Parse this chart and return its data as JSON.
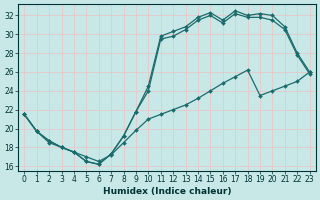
{
  "xlabel": "Humidex (Indice chaleur)",
  "bg_color": "#c8e8e8",
  "line_color": "#1a6b6b",
  "grid_color": "#e8c8c8",
  "xlim": [
    -0.5,
    23.5
  ],
  "ylim": [
    15.5,
    33.2
  ],
  "xticks": [
    0,
    1,
    2,
    3,
    4,
    5,
    6,
    7,
    8,
    9,
    10,
    11,
    12,
    13,
    14,
    15,
    16,
    17,
    18,
    19,
    20,
    21,
    22,
    23
  ],
  "yticks": [
    16,
    18,
    20,
    22,
    24,
    26,
    28,
    30,
    32
  ],
  "curve1_x": [
    0,
    1,
    2,
    3,
    4,
    5,
    6,
    7,
    8,
    9,
    10,
    11,
    12,
    13,
    14,
    15,
    16,
    17,
    18,
    19,
    20,
    21,
    22,
    23
  ],
  "curve1_y": [
    21.5,
    19.7,
    18.7,
    18.0,
    17.5,
    16.5,
    16.2,
    17.3,
    19.2,
    21.8,
    24.5,
    29.8,
    30.3,
    30.8,
    31.8,
    32.3,
    31.5,
    32.5,
    32.0,
    32.2,
    32.0,
    30.8,
    28.0,
    26.0
  ],
  "curve2_x": [
    0,
    1,
    2,
    3,
    4,
    5,
    6,
    7,
    8,
    9,
    10,
    11,
    12,
    13,
    14,
    15,
    16,
    17,
    18,
    19,
    20,
    21,
    22,
    23
  ],
  "curve2_y": [
    21.5,
    19.7,
    18.7,
    18.0,
    17.5,
    16.5,
    16.2,
    17.3,
    19.2,
    21.8,
    24.0,
    29.5,
    29.8,
    30.5,
    31.5,
    32.0,
    31.2,
    32.2,
    31.8,
    31.8,
    31.5,
    30.5,
    27.8,
    25.8
  ],
  "curve3_x": [
    0,
    1,
    2,
    3,
    4,
    5,
    6,
    7,
    8,
    9,
    10,
    11,
    12,
    13,
    14,
    15,
    16,
    17,
    18,
    19,
    20,
    21,
    22,
    23
  ],
  "curve3_y": [
    21.5,
    19.7,
    18.5,
    18.0,
    17.5,
    17.0,
    16.5,
    17.2,
    18.5,
    19.8,
    21.0,
    21.5,
    22.0,
    22.5,
    23.2,
    24.0,
    24.8,
    25.5,
    26.2,
    23.5,
    24.0,
    24.5,
    25.0,
    26.0
  ]
}
